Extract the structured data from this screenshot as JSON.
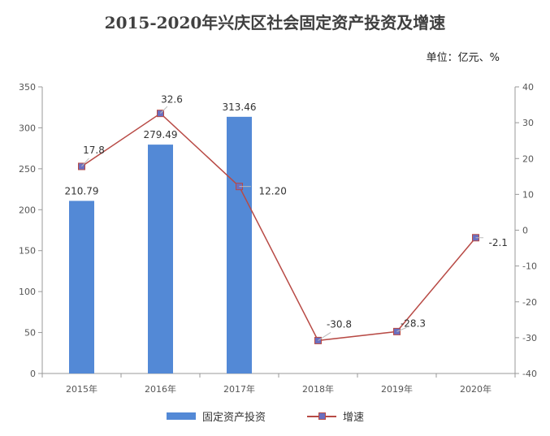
{
  "title": "2015-2020年兴庆区社会固定资产投资及增速",
  "unit_label": "单位：亿元、%",
  "colors": {
    "bar": "#5389d6",
    "line": "#b84a45",
    "marker": "#6a6fc0"
  },
  "legend": {
    "bar_label": "固定资产投资",
    "line_label": "增速"
  },
  "chart_data": {
    "type": "bar+line",
    "categories": [
      "2015年",
      "2016年",
      "2017年",
      "2018年",
      "2019年",
      "2020年"
    ],
    "series": [
      {
        "name": "固定资产投资",
        "type": "bar",
        "axis": "left",
        "values": [
          210.79,
          279.49,
          313.46,
          null,
          null,
          null
        ],
        "labels": [
          "210.79",
          "279.49",
          "313.46",
          "",
          "",
          ""
        ]
      },
      {
        "name": "增速",
        "type": "line",
        "axis": "right",
        "values": [
          17.8,
          32.6,
          12.2,
          -30.8,
          -28.3,
          -2.1
        ],
        "labels": [
          "17.8",
          "32.6",
          "12.20",
          "-30.8",
          "-28.3",
          "-2.1"
        ]
      }
    ],
    "ylim_left": [
      0,
      350
    ],
    "yticks_left": [
      0,
      50,
      100,
      150,
      200,
      250,
      300,
      350
    ],
    "ylim_right": [
      -40,
      40
    ],
    "yticks_right": [
      -40,
      -30,
      -20,
      -10,
      0,
      10,
      20,
      30,
      40
    ],
    "legend_position": "bottom"
  }
}
